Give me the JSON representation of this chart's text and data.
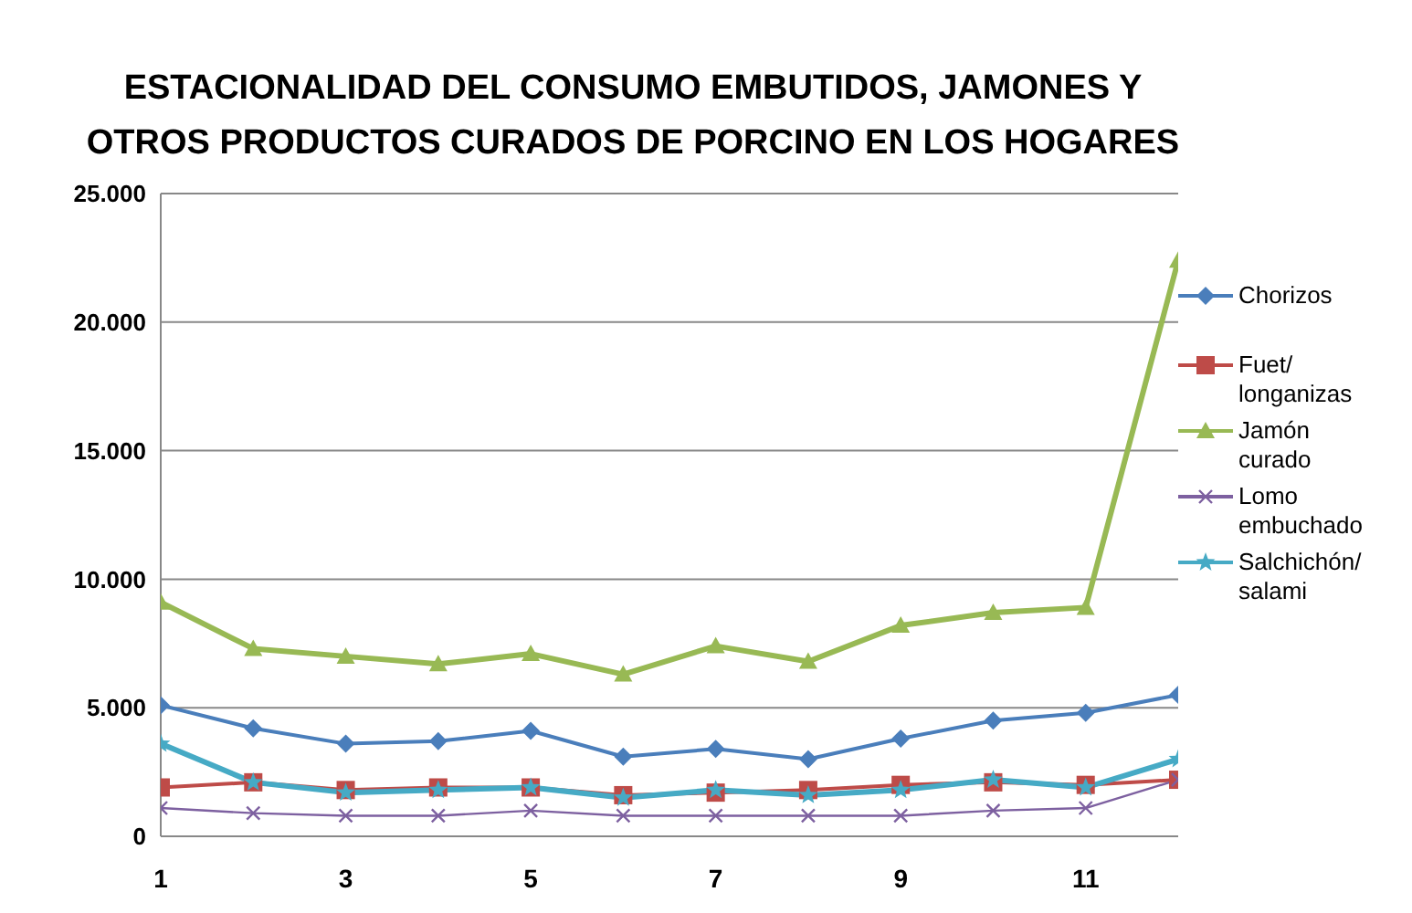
{
  "chart_data": {
    "type": "line",
    "title": "ESTACIONALIDAD DEL CONSUMO EMBUTIDOS, JAMONES Y OTROS PRODUCTOS CURADOS DE PORCINO EN LOS HOGARES",
    "x": [
      1,
      2,
      3,
      4,
      5,
      6,
      7,
      8,
      9,
      10,
      11,
      12
    ],
    "xlim": [
      1,
      12
    ],
    "xticks": [
      1,
      3,
      5,
      7,
      9,
      11
    ],
    "ylim": [
      0,
      25000
    ],
    "yticks": [
      0,
      {
        "value": 5000,
        "label": "5.000"
      },
      {
        "value": 10000,
        "label": "10.000"
      },
      {
        "value": 15000,
        "label": "15.000"
      },
      {
        "value": 20000,
        "label": "20.000"
      },
      {
        "value": 25000,
        "label": "25.000"
      }
    ],
    "grid": "y",
    "legend": "right",
    "line_style": "solid",
    "series": [
      {
        "name": "Chorizos",
        "color": "#4a7ebb",
        "marker": "diamond",
        "values": [
          5100,
          4200,
          3600,
          3700,
          4100,
          3100,
          3400,
          3000,
          3800,
          4500,
          4800,
          5500
        ]
      },
      {
        "name": "Fuet/ longanizas",
        "color": "#be4b48",
        "marker": "square",
        "values": [
          1900,
          2100,
          1800,
          1900,
          1900,
          1600,
          1700,
          1800,
          2000,
          2100,
          2000,
          2200
        ]
      },
      {
        "name": "Jamón curado",
        "color": "#98b954",
        "marker": "triangle",
        "values": [
          9100,
          7300,
          7000,
          6700,
          7100,
          6300,
          7400,
          6800,
          8200,
          8700,
          8900,
          22400
        ]
      },
      {
        "name": "Lomo embuchado",
        "color": "#7d60a0",
        "marker": "cross",
        "values": [
          1100,
          900,
          800,
          800,
          1000,
          800,
          800,
          800,
          800,
          1000,
          1100,
          2200
        ]
      },
      {
        "name": "Salchichón/ salami",
        "color": "#46aac5",
        "marker": "star",
        "values": [
          3600,
          2100,
          1700,
          1800,
          1900,
          1500,
          1800,
          1600,
          1800,
          2200,
          1900,
          3000
        ]
      }
    ]
  }
}
